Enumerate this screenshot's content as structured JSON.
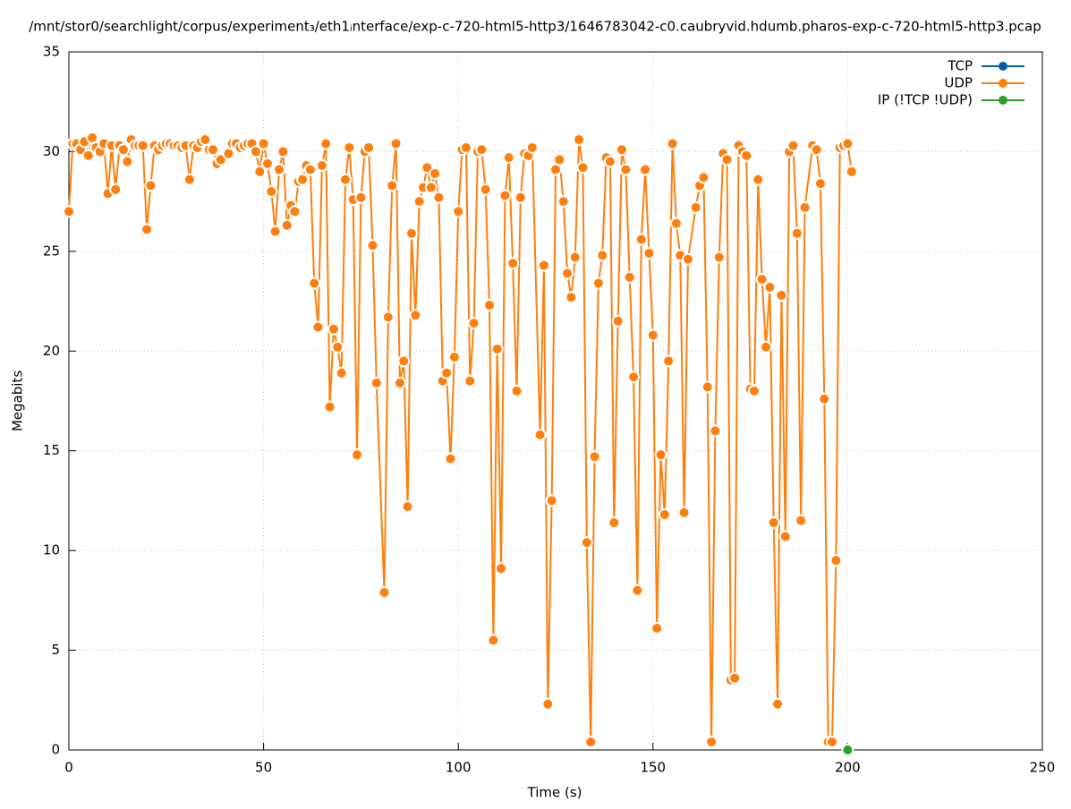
{
  "chart_data": {
    "type": "line",
    "title": "/mnt/stor0/searchlight/corpus/experiment₃/eth1ᵢnterface/exp-c-720-html5-http3/1646783042-c0.caubryvid.hdumb.pharos-exp-c-720-html5-http3.pcap",
    "x_label": "Time (s)",
    "y_label": "Megabits",
    "xlim": [
      0,
      250
    ],
    "xticks": [
      0,
      50,
      100,
      150,
      200,
      250
    ],
    "ylim": [
      0,
      35
    ],
    "yticks": [
      0,
      5,
      10,
      15,
      20,
      25,
      30,
      35
    ],
    "grid": true,
    "legend": "top-right",
    "series": [
      {
        "name": "TCP",
        "color": "#0060ad",
        "x": [],
        "values": []
      },
      {
        "name": "UDP",
        "color": "#ff7f0e",
        "x": [
          0,
          1,
          2,
          3,
          4,
          5,
          6,
          7,
          8,
          9,
          10,
          11,
          12,
          13,
          14,
          15,
          16,
          17,
          18,
          19,
          20,
          21,
          22,
          23,
          24,
          25,
          26,
          27,
          28,
          29,
          30,
          31,
          32,
          33,
          34,
          35,
          36,
          37,
          38,
          39,
          41,
          42,
          43,
          44,
          45,
          46,
          47,
          48,
          49,
          50,
          51,
          52,
          53,
          54,
          55,
          56,
          57,
          58,
          59,
          60,
          61,
          62,
          63,
          64,
          65,
          66,
          67,
          68,
          69,
          70,
          71,
          72,
          73,
          74,
          75,
          76,
          77,
          78,
          79,
          81,
          82,
          83,
          84,
          85,
          86,
          87,
          88,
          89,
          90,
          91,
          92,
          93,
          94,
          95,
          96,
          97,
          98,
          99,
          100,
          101,
          102,
          103,
          104,
          105,
          106,
          107,
          108,
          109,
          110,
          111,
          112,
          113,
          114,
          115,
          116,
          117,
          118,
          119,
          121,
          122,
          123,
          124,
          125,
          126,
          127,
          128,
          129,
          130,
          131,
          132,
          133,
          134,
          135,
          136,
          137,
          138,
          139,
          140,
          141,
          142,
          143,
          144,
          145,
          146,
          147,
          148,
          149,
          150,
          151,
          152,
          153,
          154,
          155,
          156,
          157,
          158,
          159,
          161,
          162,
          163,
          164,
          165,
          166,
          167,
          168,
          169,
          170,
          171,
          172,
          173,
          174,
          175,
          176,
          177,
          178,
          179,
          180,
          181,
          182,
          183,
          184,
          185,
          186,
          187,
          188,
          189,
          191,
          192,
          193,
          194,
          195,
          196,
          197,
          198,
          199,
          200,
          201
        ],
        "values": [
          27.0,
          30.4,
          30.4,
          30.1,
          30.5,
          29.8,
          30.7,
          30.2,
          30.0,
          30.4,
          27.9,
          30.3,
          28.1,
          30.3,
          30.1,
          29.5,
          30.6,
          30.3,
          30.3,
          30.3,
          26.1,
          28.3,
          30.3,
          30.1,
          30.3,
          30.4,
          30.4,
          30.3,
          30.3,
          30.2,
          30.3,
          28.6,
          30.3,
          30.2,
          30.5,
          30.6,
          30.1,
          30.1,
          29.4,
          29.6,
          29.9,
          30.4,
          30.4,
          30.2,
          30.3,
          30.4,
          30.4,
          30.0,
          29.0,
          30.4,
          29.4,
          28.0,
          26.0,
          29.1,
          30.0,
          26.3,
          27.3,
          27.0,
          28.5,
          28.6,
          29.3,
          29.1,
          23.4,
          21.2,
          29.3,
          30.4,
          17.2,
          21.1,
          20.2,
          18.9,
          28.6,
          30.2,
          27.6,
          14.8,
          27.7,
          30.0,
          30.2,
          25.3,
          18.4,
          7.9,
          21.7,
          28.3,
          30.4,
          18.4,
          19.5,
          12.2,
          25.9,
          21.8,
          27.5,
          28.2,
          29.2,
          28.2,
          28.9,
          27.7,
          18.5,
          18.9,
          14.6,
          19.7,
          27.0,
          30.1,
          30.2,
          18.5,
          21.4,
          30.0,
          30.1,
          28.1,
          22.3,
          5.5,
          20.1,
          9.1,
          27.8,
          29.7,
          24.4,
          18.0,
          27.7,
          29.9,
          29.8,
          30.2,
          15.8,
          24.3,
          2.3,
          12.5,
          29.1,
          29.6,
          27.5,
          23.9,
          22.7,
          24.7,
          30.6,
          29.2,
          10.4,
          0.4,
          14.7,
          23.4,
          24.8,
          29.7,
          29.5,
          11.4,
          21.5,
          30.1,
          29.1,
          23.7,
          18.7,
          8.0,
          25.6,
          29.1,
          24.9,
          20.8,
          6.1,
          14.8,
          11.8,
          19.5,
          30.4,
          26.4,
          24.8,
          11.9,
          24.6,
          27.2,
          28.3,
          28.7,
          18.2,
          0.4,
          16.0,
          24.7,
          29.9,
          29.6,
          3.5,
          3.6,
          30.3,
          30.0,
          29.8,
          18.1,
          18.0,
          28.6,
          23.6,
          20.2,
          23.2,
          11.4,
          2.3,
          22.8,
          10.7,
          30.0,
          30.3,
          25.9,
          11.5,
          27.2,
          30.3,
          30.1,
          28.4,
          17.6,
          0.4,
          0.4,
          9.5,
          30.2,
          30.3,
          30.4,
          29.0
        ]
      },
      {
        "name": "IP (!TCP  !UDP)",
        "color": "#2ca02c",
        "x": [
          200
        ],
        "values": [
          0
        ]
      }
    ]
  }
}
